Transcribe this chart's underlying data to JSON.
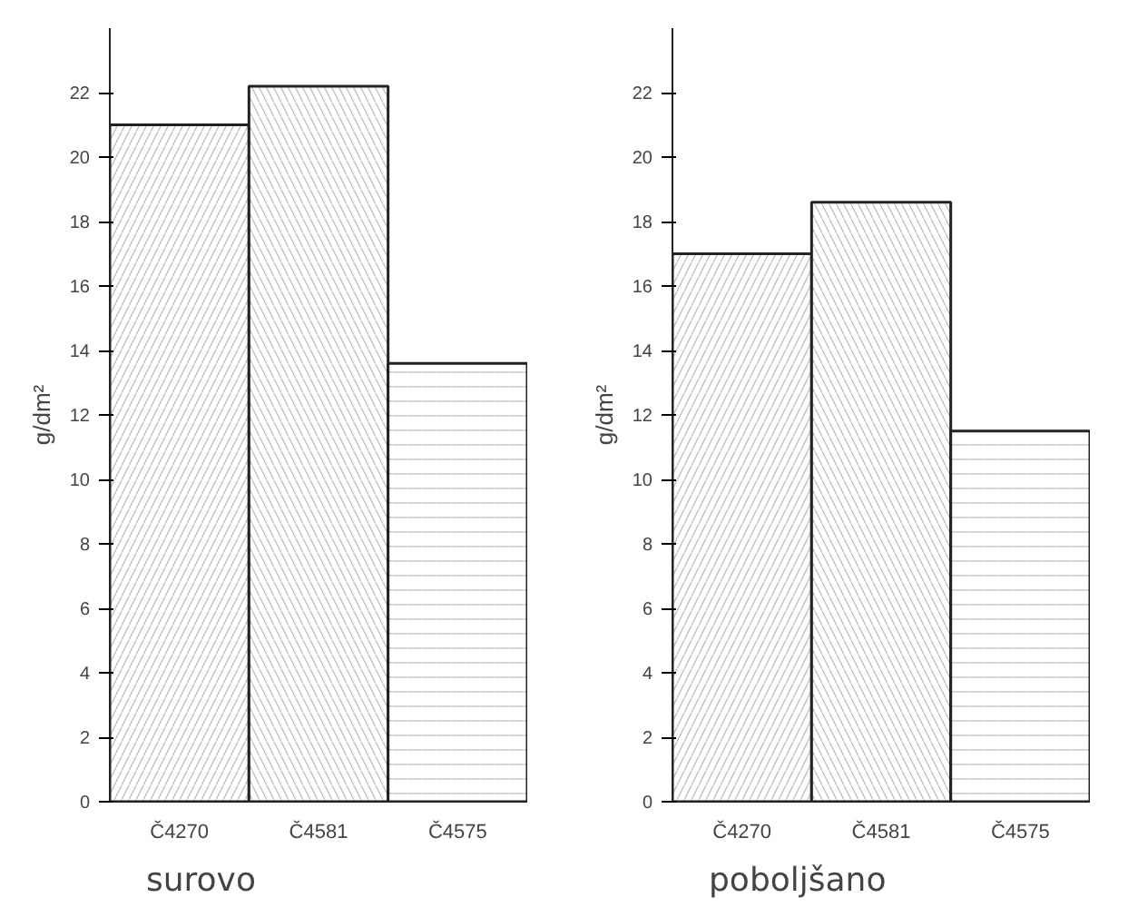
{
  "chart_data": [
    {
      "type": "bar",
      "title": "surovo",
      "ylabel": "g/dm²",
      "categories": [
        "Č4270",
        "Č4581",
        "Č4575"
      ],
      "values": [
        21.0,
        22.2,
        13.6
      ],
      "color": "#ffffff",
      "ylim": [
        0,
        24
      ],
      "yticks": [
        0,
        2,
        4,
        6,
        8,
        10,
        12,
        14,
        16,
        18,
        20,
        22
      ],
      "grid": false
    },
    {
      "type": "bar",
      "title": "poboljšano",
      "ylabel": "g/dm²",
      "categories": [
        "Č4270",
        "Č4581",
        "Č4575"
      ],
      "values": [
        17.0,
        18.6,
        11.5
      ],
      "color": "#ffffff",
      "ylim": [
        0,
        24
      ],
      "yticks": [
        0,
        2,
        4,
        6,
        8,
        10,
        12,
        14,
        16,
        18,
        20,
        22
      ],
      "grid": false
    }
  ]
}
